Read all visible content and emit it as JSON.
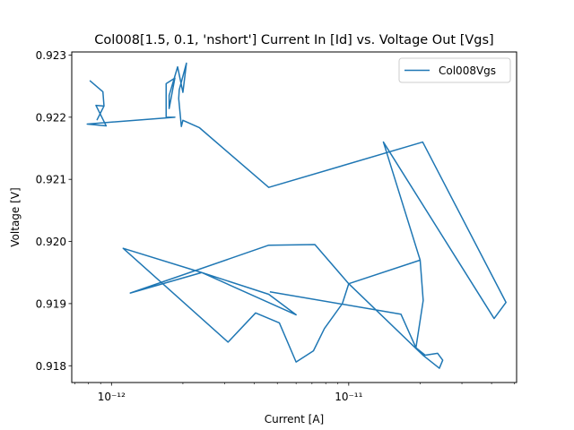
{
  "chart_data": {
    "type": "line",
    "title": "Col008[1.5, 0.1, 'nshort'] Current In [Id] vs. Voltage Out [Vgs]",
    "xlabel": "Current [A]",
    "ylabel": "Voltage [V]",
    "xscale": "log",
    "xlim": [
      6.8e-13,
      5.1e-11
    ],
    "ylim": [
      0.91773,
      0.92305
    ],
    "x_major_ticks": [
      1e-12,
      1e-11
    ],
    "x_major_tick_labels": [
      "10⁻¹²",
      "10⁻¹¹"
    ],
    "x_minor_ticks": [
      7e-13,
      8e-13,
      9e-13,
      2e-12,
      3e-12,
      4e-12,
      5e-12,
      6e-12,
      7e-12,
      8e-12,
      9e-12,
      2e-11,
      3e-11,
      4e-11,
      5e-11
    ],
    "y_ticks": [
      0.918,
      0.919,
      0.92,
      0.921,
      0.922,
      0.923
    ],
    "y_tick_labels": [
      "0.918",
      "0.919",
      "0.920",
      "0.921",
      "0.922",
      "0.923"
    ],
    "legend_position": "top-right",
    "grid": false,
    "series": [
      {
        "name": "Col008Vgs",
        "color": "#1f77b4",
        "x": [
          8.1e-13,
          9.2e-13,
          9.3e-13,
          8.7e-13,
          9.3e-13,
          8.6e-13,
          9.5e-13,
          7.9e-13,
          1.85e-12,
          1.7e-12,
          1.7e-12,
          1.85e-12,
          1.75e-12,
          1.75e-12,
          1.9e-12,
          2e-12,
          2.07e-12,
          1.93e-12,
          1.92e-12,
          1.97e-12,
          2e-12,
          2.35e-12,
          4.6e-12,
          2.05e-11,
          4.6e-11,
          4.1e-11,
          1.4e-11,
          2e-11,
          2.06e-11,
          1.92e-11,
          2.1e-11,
          2.37e-11,
          2.49e-11,
          2.41e-11,
          2.07e-11,
          1.93e-11,
          1e-11,
          7.2e-12,
          4.6e-12,
          1.2e-12,
          2.4e-12,
          6e-12,
          4.6e-12,
          2.4e-12,
          1.12e-12,
          3.1e-12,
          4.05e-12,
          5.1e-12,
          6e-12,
          7.1e-12,
          7.9e-12,
          9.4e-12,
          1e-11,
          2e-11,
          2.06e-11,
          1.92e-11,
          1.66e-11,
          4.65e-12
        ],
        "y": [
          0.92259,
          0.92241,
          0.92218,
          0.92196,
          0.92218,
          0.92219,
          0.92186,
          0.92189,
          0.922,
          0.922,
          0.92254,
          0.92263,
          0.92214,
          0.92235,
          0.92281,
          0.9224,
          0.92287,
          0.92244,
          0.9223,
          0.92185,
          0.92195,
          0.92183,
          0.92087,
          0.9216,
          0.91902,
          0.91876,
          0.9216,
          0.9197,
          0.91905,
          0.91829,
          0.91817,
          0.9182,
          0.91809,
          0.91796,
          0.91816,
          0.91827,
          0.91932,
          0.91995,
          0.91994,
          0.91917,
          0.9195,
          0.91882,
          0.91915,
          0.9195,
          0.91989,
          0.91838,
          0.91885,
          0.91869,
          0.91806,
          0.91824,
          0.9186,
          0.919,
          0.91932,
          0.9197,
          0.91905,
          0.91829,
          0.91883,
          0.91919
        ]
      }
    ]
  }
}
